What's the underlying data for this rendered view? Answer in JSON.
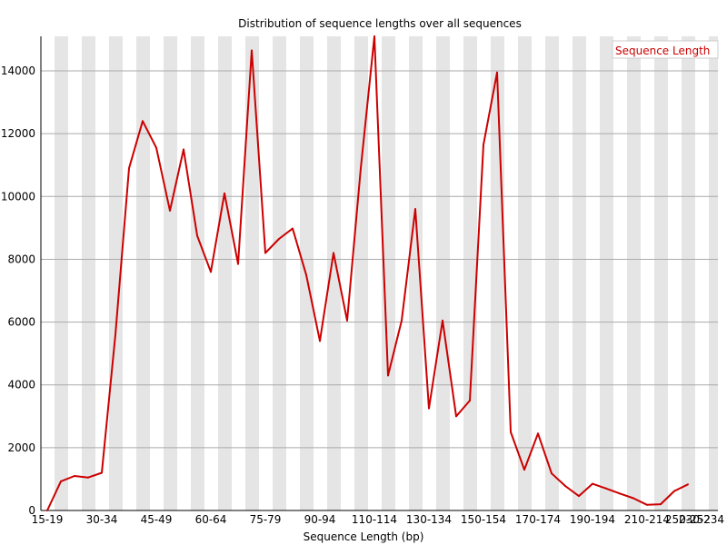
{
  "chart_data": {
    "type": "line",
    "title": "Distribution of sequence lengths over all sequences",
    "xlabel": "Sequence Length (bp)",
    "ylabel": "",
    "ylim": [
      0,
      15100
    ],
    "yticks": [
      0,
      2000,
      4000,
      6000,
      8000,
      10000,
      12000,
      14000
    ],
    "grid": "horizontal",
    "legend_placement": "top-right",
    "x_tick_labels": [
      "15-19",
      "30-34",
      "45-49",
      "60-64",
      "75-79",
      "90-94",
      "110-114",
      "130-134",
      "150-154",
      "170-174",
      "190-194",
      "210-214",
      "230-234",
      "250-252"
    ],
    "series": [
      {
        "name": "Sequence Length",
        "color": "#cc0000",
        "values": [
          0,
          930,
          1100,
          1050,
          1200,
          5600,
          10900,
          12400,
          11550,
          9550,
          11500,
          8750,
          7600,
          10100,
          7850,
          14650,
          8200,
          8650,
          8980,
          7500,
          5400,
          8200,
          6050,
          10900,
          15100,
          4300,
          6050,
          9600,
          3250,
          6050,
          3000,
          3500,
          11650,
          13950,
          2500,
          1300,
          2450,
          1180,
          780,
          460,
          850,
          700,
          540,
          390,
          180,
          200,
          620,
          830
        ]
      }
    ]
  }
}
